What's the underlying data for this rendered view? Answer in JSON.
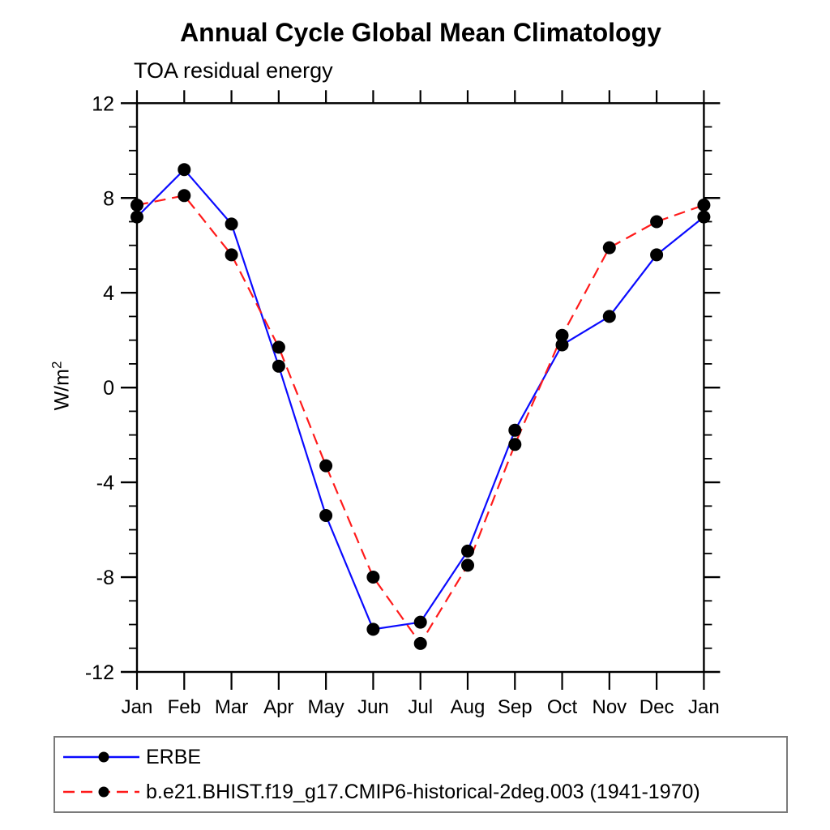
{
  "page": {
    "background": "#ffffff"
  },
  "title": "Annual Cycle Global Mean Climatology",
  "subtitle": "TOA residual energy",
  "y_axis": {
    "label_base": "W/m",
    "label_sup": "2"
  },
  "chart_data": {
    "type": "line",
    "title": "Annual Cycle Global Mean Climatology",
    "subtitle": "TOA residual energy",
    "ylabel": "W/m^2",
    "xlabel": "",
    "x_categories": [
      "Jan",
      "Feb",
      "Mar",
      "Apr",
      "May",
      "Jun",
      "Jul",
      "Aug",
      "Sep",
      "Oct",
      "Nov",
      "Dec",
      "Jan"
    ],
    "ylim": [
      -12,
      12
    ],
    "y_major_ticks": [
      12,
      8,
      4,
      0,
      -4,
      -8,
      -12
    ],
    "y_minor_step": 1,
    "grid": false,
    "legend_position": "bottom-left-box",
    "axis_color": "#000000",
    "marker_radius": 8,
    "series": [
      {
        "name": "ERBE",
        "color": "#0a0aff",
        "style": "solid",
        "dasharray": "none",
        "marker": "circle",
        "marker_color": "#000000",
        "values": [
          7.2,
          9.2,
          6.9,
          0.9,
          -5.4,
          -10.2,
          -9.9,
          -6.9,
          -1.8,
          1.8,
          3.0,
          5.6,
          7.2
        ]
      },
      {
        "name": "b.e21.BHIST.f19_g17.CMIP6-historical-2deg.003 (1941-1970)",
        "color": "#ff1a1a",
        "style": "dashed",
        "dasharray": "14 8",
        "marker": "circle",
        "marker_color": "#000000",
        "values": [
          7.7,
          8.1,
          5.6,
          1.7,
          -3.3,
          -8.0,
          -10.8,
          -7.5,
          -2.4,
          2.2,
          5.9,
          7.0,
          7.7
        ]
      }
    ]
  }
}
